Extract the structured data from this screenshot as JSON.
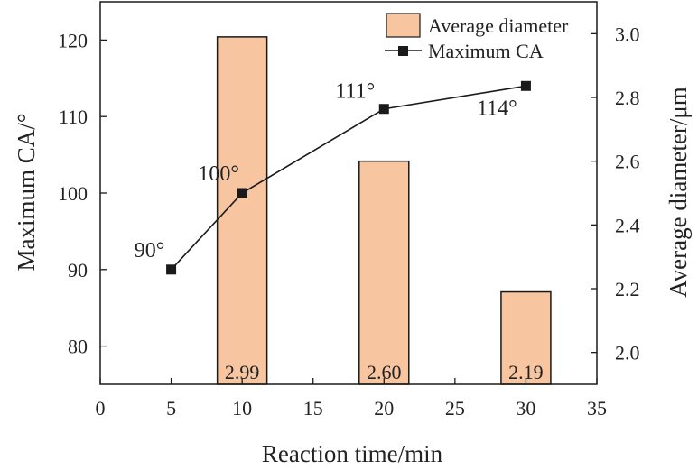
{
  "chart_data": {
    "type": "bar+line",
    "x": [
      5,
      10,
      20,
      30
    ],
    "xlabel": "Reaction time/min",
    "xlim": [
      0,
      35
    ],
    "xticks": [
      0,
      5,
      10,
      15,
      20,
      25,
      30,
      35
    ],
    "ylabel_left": "Maximum CA/°",
    "ylim_left": [
      75,
      125
    ],
    "yticks_left": [
      80,
      90,
      100,
      110,
      120
    ],
    "ylabel_right": "Average diameter/μm",
    "ylim_right": [
      1.9,
      3.1
    ],
    "yticks_right": [
      2.0,
      2.2,
      2.4,
      2.6,
      2.8,
      3.0
    ],
    "tick_format_right": 1,
    "bar_width": 3.5,
    "series": [
      {
        "name": "Average diameter",
        "type": "bar",
        "axis": "right",
        "x": [
          10,
          20,
          30
        ],
        "values": [
          2.99,
          2.6,
          2.19
        ],
        "labels": [
          "2.99",
          "2.60",
          "2.19"
        ],
        "color": "#F7C59F",
        "edgecolor": "#1a1a1a"
      },
      {
        "name": "Maximum CA",
        "type": "line",
        "axis": "left",
        "x": [
          5,
          10,
          20,
          30
        ],
        "values": [
          90,
          100,
          111,
          114
        ],
        "labels": [
          "90°",
          "100°",
          "111°",
          "114°"
        ],
        "color": "#1a1a1a",
        "marker": "square"
      }
    ],
    "legend": {
      "position": "top-right",
      "entries": [
        "Average diameter",
        "Maximum CA"
      ]
    }
  }
}
